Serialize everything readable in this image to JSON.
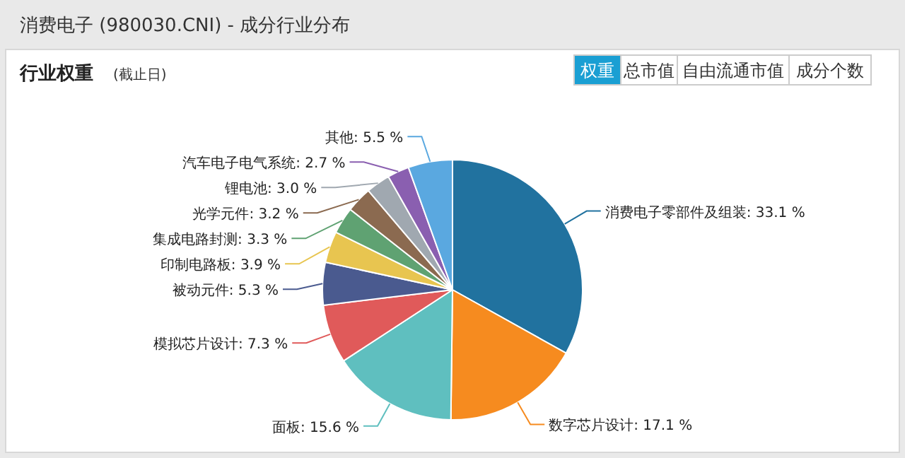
{
  "chart_data": {
    "type": "pie",
    "title": "消费电子 (980030.CNI) - 成分行业分布",
    "subtitle": "行业权重",
    "annotations": [
      "(截止日)",
      "权重",
      "总市值",
      "自由流通市值",
      "成分个数"
    ],
    "categories": [
      "消费电子零部件及组装",
      "数字芯片设计",
      "面板",
      "模拟芯片设计",
      "被动元件",
      "印制电路板",
      "集成电路封测",
      "光学元件",
      "锂电池",
      "汽车电子电气系统",
      "其他"
    ],
    "values": [
      33.1,
      17.1,
      15.6,
      7.3,
      5.3,
      3.9,
      3.3,
      3.2,
      3.0,
      2.7,
      5.5
    ],
    "colors": [
      "#21729f",
      "#f68b1f",
      "#5fbfbf",
      "#e05a5a",
      "#4a5a8f",
      "#e8c550",
      "#5fa272",
      "#8b6a50",
      "#a0a8b0",
      "#8a5fb0",
      "#5aa8e0"
    ],
    "value_labels": [
      "33.1 %",
      "17.1 %",
      "15.6 %",
      "7.3 %",
      "5.3 %",
      "3.9 %",
      "3.3 %",
      "3.2 %",
      "3.0 %",
      "2.7 %",
      "5.5 %"
    ]
  }
}
